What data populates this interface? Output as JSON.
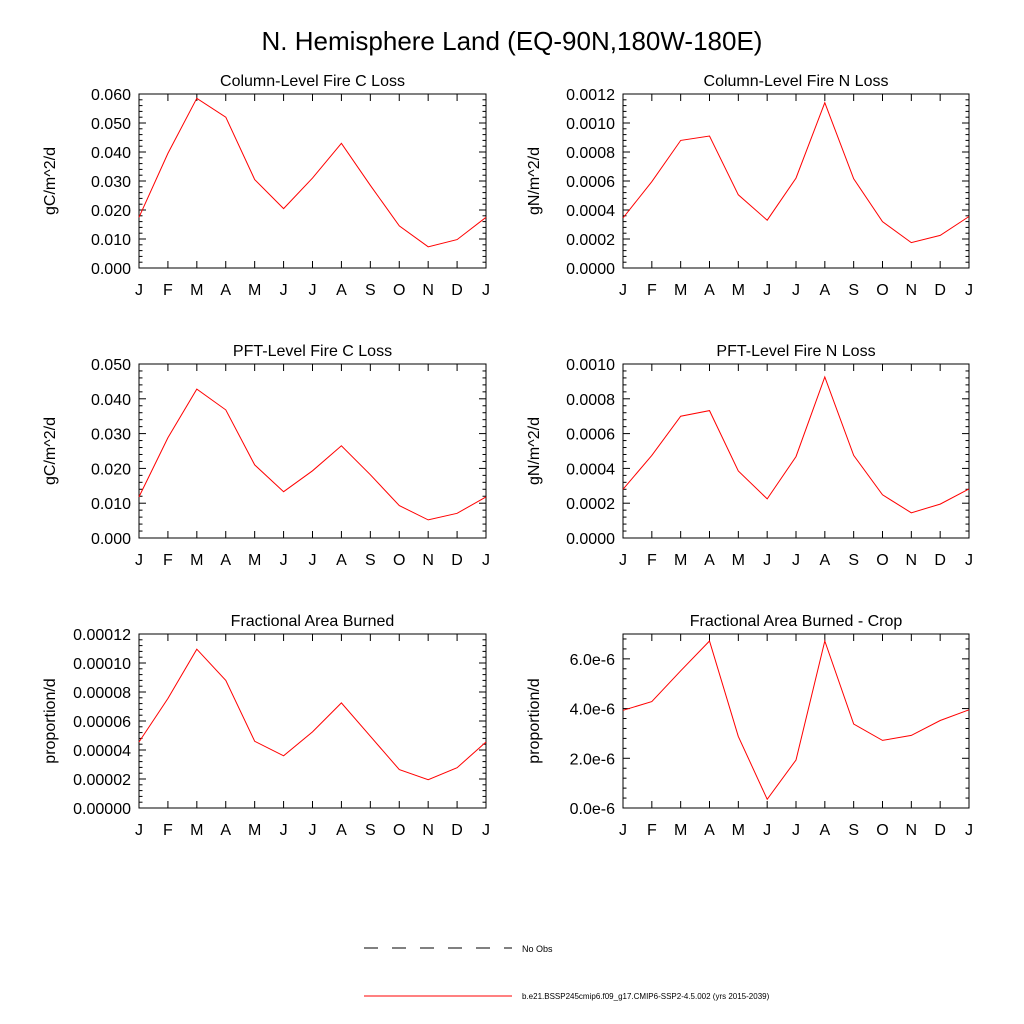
{
  "page": {
    "title": "N. Hemisphere Land (EQ-90N,180W-180E)"
  },
  "month_labels": [
    "J",
    "F",
    "M",
    "A",
    "M",
    "J",
    "J",
    "A",
    "S",
    "O",
    "N",
    "D",
    "J"
  ],
  "legend": {
    "no_obs_label": "No Obs",
    "model_label": "b.e21.BSSP245cmip6.f09_g17.CMIP6-SSP2-4.5.002 (yrs 2015-2039)",
    "model_color": "#ff0000",
    "obs_color": "#000000"
  },
  "chart_data": [
    {
      "type": "line",
      "title": "Column-Level Fire C Loss",
      "ylabel": "gC/m^2/d",
      "ylim": [
        0,
        0.06
      ],
      "yticks": [
        0,
        0.01,
        0.02,
        0.03,
        0.04,
        0.05,
        0.06
      ],
      "ytick_labels": [
        "0.000",
        "0.010",
        "0.020",
        "0.030",
        "0.040",
        "0.050",
        "0.060"
      ],
      "series": [
        {
          "name": "model",
          "color": "#ff0000",
          "values": [
            0.0175,
            0.0395,
            0.0585,
            0.052,
            0.0305,
            0.0205,
            0.031,
            0.043,
            0.0285,
            0.0145,
            0.0073,
            0.0098,
            0.0175
          ]
        }
      ]
    },
    {
      "type": "line",
      "title": "Column-Level Fire N Loss",
      "ylabel": "gN/m^2/d",
      "ylim": [
        0,
        0.0012
      ],
      "yticks": [
        0,
        0.0002,
        0.0004,
        0.0006,
        0.0008,
        0.001,
        0.0012
      ],
      "ytick_labels": [
        "0.0000",
        "0.0002",
        "0.0004",
        "0.0006",
        "0.0008",
        "0.0010",
        "0.0012"
      ],
      "series": [
        {
          "name": "model",
          "color": "#ff0000",
          "values": [
            0.000345,
            0.000595,
            0.00088,
            0.00091,
            0.000505,
            0.00033,
            0.00062,
            0.00114,
            0.000615,
            0.00032,
            0.000175,
            0.000225,
            0.000355
          ]
        }
      ]
    },
    {
      "type": "line",
      "title": "PFT-Level Fire C Loss",
      "ylabel": "gC/m^2/d",
      "ylim": [
        0,
        0.05
      ],
      "yticks": [
        0,
        0.01,
        0.02,
        0.03,
        0.04,
        0.05
      ],
      "ytick_labels": [
        "0.000",
        "0.010",
        "0.020",
        "0.030",
        "0.040",
        "0.050"
      ],
      "series": [
        {
          "name": "model",
          "color": "#ff0000",
          "values": [
            0.0118,
            0.0288,
            0.0428,
            0.0368,
            0.021,
            0.0133,
            0.0193,
            0.0265,
            0.0182,
            0.0093,
            0.0052,
            0.0071,
            0.0118
          ]
        }
      ]
    },
    {
      "type": "line",
      "title": "PFT-Level Fire N Loss",
      "ylabel": "gN/m^2/d",
      "ylim": [
        0,
        0.001
      ],
      "yticks": [
        0,
        0.0002,
        0.0004,
        0.0006,
        0.0008,
        0.001
      ],
      "ytick_labels": [
        "0.0000",
        "0.0002",
        "0.0004",
        "0.0006",
        "0.0008",
        "0.0010"
      ],
      "series": [
        {
          "name": "model",
          "color": "#ff0000",
          "values": [
            0.00028,
            0.000475,
            0.0007,
            0.000732,
            0.000385,
            0.000225,
            0.000468,
            0.000925,
            0.000475,
            0.000248,
            0.000145,
            0.000195,
            0.000282
          ]
        }
      ]
    },
    {
      "type": "line",
      "title": "Fractional Area Burned",
      "ylabel": "proportion/d",
      "ylim": [
        0,
        0.00012
      ],
      "yticks": [
        0,
        2e-05,
        4e-05,
        6e-05,
        8e-05,
        0.0001,
        0.00012
      ],
      "ytick_labels": [
        "0.00000",
        "0.00002",
        "0.00004",
        "0.00006",
        "0.00008",
        "0.00010",
        "0.00012"
      ],
      "series": [
        {
          "name": "model",
          "color": "#ff0000",
          "values": [
            4.55e-05,
            7.55e-05,
            0.0001095,
            8.8e-05,
            4.6e-05,
            3.6e-05,
            5.25e-05,
            7.25e-05,
            4.95e-05,
            2.65e-05,
            1.95e-05,
            2.78e-05,
            4.55e-05
          ]
        }
      ]
    },
    {
      "type": "line",
      "title": "Fractional Area Burned - Crop",
      "ylabel": "proportion/d",
      "ylim": [
        0,
        7e-06
      ],
      "yticks": [
        0,
        2e-06,
        4e-06,
        6e-06
      ],
      "ytick_labels": [
        "0.0e-6",
        "2.0e-6",
        "4.0e-6",
        "6.0e-6"
      ],
      "series": [
        {
          "name": "model",
          "color": "#ff0000",
          "values": [
            3.93e-06,
            4.28e-06,
            5.52e-06,
            6.72e-06,
            2.88e-06,
            3.5e-07,
            1.93e-06,
            6.72e-06,
            3.38e-06,
            2.72e-06,
            2.92e-06,
            3.52e-06,
            3.95e-06
          ]
        }
      ]
    }
  ]
}
